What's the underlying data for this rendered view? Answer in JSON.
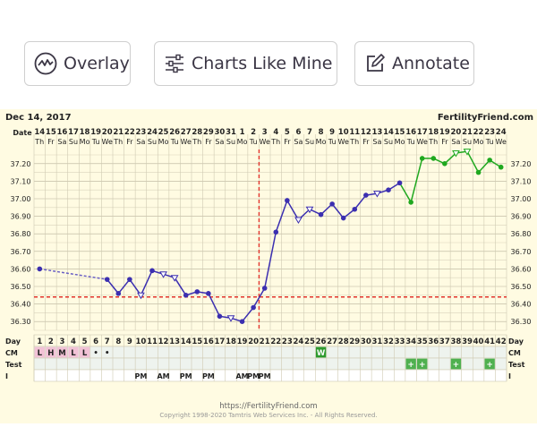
{
  "toolbar": {
    "overlay_label": "Overlay",
    "charts_like_mine_label": "Charts Like Mine",
    "annotate_label": "Annotate"
  },
  "chart_header": {
    "date": "Dec 14, 2017",
    "brand": "FertilityFriend.com"
  },
  "footer": {
    "url": "https://FertilityFriend.com",
    "copyright": "Copyright 1998-2020 Tamtris Web Services Inc. - All Rights Reserved."
  },
  "chart_data": {
    "type": "line",
    "x_dates": [
      "14",
      "15",
      "16",
      "17",
      "18",
      "19",
      "20",
      "21",
      "22",
      "23",
      "24",
      "25",
      "26",
      "27",
      "28",
      "29",
      "30",
      "31",
      "1",
      "2",
      "3",
      "4",
      "5",
      "6",
      "7",
      "8",
      "9",
      "10",
      "11",
      "12",
      "13",
      "14",
      "15",
      "16",
      "17",
      "18",
      "19",
      "20",
      "21",
      "22",
      "23",
      "24"
    ],
    "x_weekdays": [
      "Th",
      "Fr",
      "Sa",
      "Su",
      "Mo",
      "Tu",
      "We",
      "Th",
      "Fr",
      "Sa",
      "Su",
      "Mo",
      "Tu",
      "We",
      "Th",
      "Fr",
      "Sa",
      "Su",
      "Mo",
      "Tu",
      "We",
      "Th",
      "Fr",
      "Sa",
      "Su",
      "Mo",
      "Tu",
      "We",
      "Th",
      "Fr",
      "Sa",
      "Su",
      "Mo",
      "Tu",
      "We",
      "Th",
      "Fr",
      "Sa",
      "Su",
      "Mo",
      "Tu",
      "We"
    ],
    "x_days": [
      1,
      2,
      3,
      4,
      5,
      6,
      7,
      8,
      9,
      10,
      11,
      12,
      13,
      14,
      15,
      16,
      17,
      18,
      19,
      20,
      21,
      22,
      23,
      24,
      25,
      26,
      27,
      28,
      29,
      30,
      31,
      32,
      33,
      34,
      35,
      36,
      37,
      38,
      39,
      40,
      41,
      42
    ],
    "y_ticks": [
      "37.20",
      "37.10",
      "37.00",
      "36.90",
      "36.80",
      "36.70",
      "36.60",
      "36.50",
      "36.40",
      "36.30"
    ],
    "ylim": [
      36.25,
      37.25
    ],
    "series": [
      {
        "values": [
          36.6,
          null,
          null,
          null,
          null,
          null,
          36.54,
          36.46,
          36.54,
          36.45,
          36.59,
          36.57,
          36.55,
          36.45,
          36.47,
          36.46,
          36.33,
          36.32,
          36.3,
          36.38,
          36.49,
          36.81,
          36.99,
          36.88,
          36.94,
          36.91,
          36.97,
          36.89,
          36.94,
          37.02,
          37.03,
          37.05,
          37.09,
          36.98,
          37.23,
          37.23,
          37.2,
          37.26,
          37.27,
          37.15,
          37.22,
          37.18
        ],
        "markers": [
          "dot",
          "none",
          "none",
          "none",
          "none",
          "none",
          "dot",
          "dot",
          "dot",
          "open",
          "dot",
          "open",
          "open",
          "dot",
          "dot",
          "dot",
          "dot",
          "open",
          "dot",
          "dot",
          "dot",
          "dot",
          "dot",
          "open",
          "open",
          "dot",
          "dot",
          "dot",
          "dot",
          "dot",
          "open",
          "dot",
          "dot",
          "dot",
          "dot",
          "dot",
          "dot",
          "open",
          "open",
          "dot",
          "dot",
          "dot"
        ]
      }
    ],
    "post_ovulation_start_day": 34,
    "line_colors": {
      "pre": "#3b2fb0",
      "post": "#1fa81f",
      "dashed_gap": "#6a60c4",
      "coverline": "#e2342c"
    },
    "coverline_temp": 36.44,
    "ovulation_day": 20,
    "cm_row": [
      "L",
      "H",
      "M",
      "L",
      "L",
      "•",
      "•",
      "",
      "",
      "",
      "",
      "",
      "",
      "",
      "",
      "",
      "",
      "",
      "",
      "",
      "",
      "",
      "",
      "",
      "",
      "W",
      "",
      "",
      "",
      "",
      "",
      "",
      "",
      "",
      "",
      "",
      "",
      "",
      "",
      "",
      "",
      ""
    ],
    "test_row": [
      "",
      "",
      "",
      "",
      "",
      "",
      "",
      "",
      "",
      "",
      "",
      "",
      "",
      "",
      "",
      "",
      "",
      "",
      "",
      "",
      "",
      "",
      "",
      "",
      "",
      "",
      "",
      "",
      "",
      "",
      "",
      "",
      "",
      "+",
      "+",
      "",
      "",
      "+",
      "",
      "",
      "+",
      ""
    ],
    "intercourse_row": [
      "",
      "",
      "",
      "",
      "",
      "",
      "",
      "",
      "",
      "PM",
      "",
      "AM",
      "",
      "PM",
      "",
      "PM",
      "",
      "",
      "AM",
      "PM",
      "PM",
      "",
      "",
      "",
      "",
      "",
      "",
      "",
      "",
      "",
      "",
      "",
      "",
      "",
      "",
      "",
      "",
      "",
      "",
      "",
      "",
      ""
    ],
    "row_labels": {
      "date": "Date",
      "day": "Day",
      "cm": "CM",
      "test": "Test",
      "intercourse": "I"
    },
    "grid": true
  }
}
